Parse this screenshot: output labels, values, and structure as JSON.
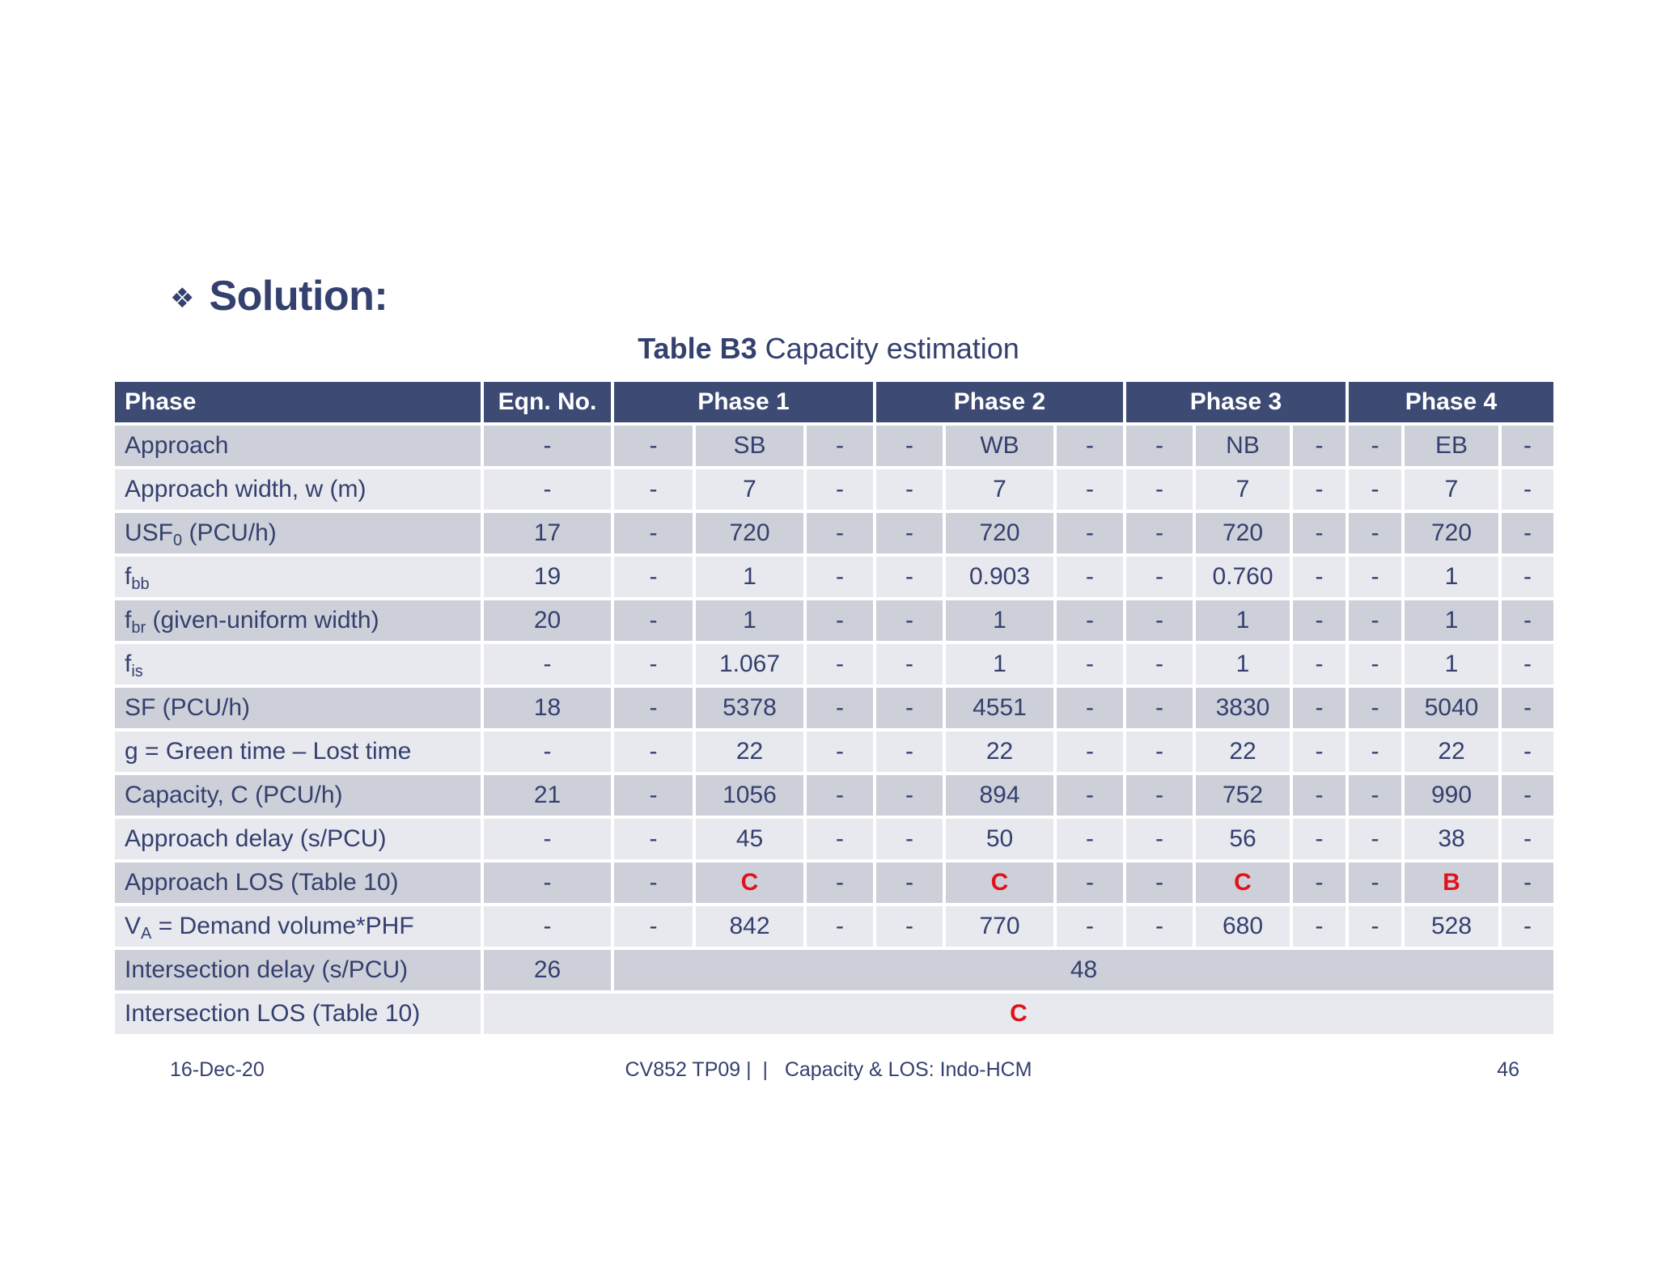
{
  "heading": {
    "bullet": "❖",
    "title": "Solution:"
  },
  "caption": {
    "bold": "Table B3",
    "text": "Capacity estimation"
  },
  "table": {
    "headers": [
      "Phase",
      "Eqn. No.",
      "Phase 1",
      "Phase 2",
      "Phase 3",
      "Phase 4"
    ],
    "rows": [
      {
        "label": "Approach",
        "eqn": "-",
        "cells": [
          "-",
          "SB",
          "-",
          "-",
          "WB",
          "-",
          "-",
          "NB",
          "-",
          "-",
          "EB",
          "-"
        ]
      },
      {
        "label": "Approach width, w (m)",
        "eqn": "-",
        "cells": [
          "-",
          "7",
          "-",
          "-",
          "7",
          "-",
          "-",
          "7",
          "-",
          "-",
          "7",
          "-"
        ]
      },
      {
        "label_main": "USF",
        "label_sub": "0",
        "label_tail": " (PCU/h)",
        "eqn": "17",
        "cells": [
          "-",
          "720",
          "-",
          "-",
          "720",
          "-",
          "-",
          "720",
          "-",
          "-",
          "720",
          "-"
        ]
      },
      {
        "label_main": "f",
        "label_sub": "bb",
        "label_tail": "",
        "eqn": "19",
        "cells": [
          "-",
          "1",
          "-",
          "-",
          "0.903",
          "-",
          "-",
          "0.760",
          "-",
          "-",
          "1",
          "-"
        ]
      },
      {
        "label_main": "f",
        "label_sub": "br",
        "label_tail": " (given-uniform width)",
        "eqn": "20",
        "cells": [
          "-",
          "1",
          "-",
          "-",
          "1",
          "-",
          "-",
          "1",
          "-",
          "-",
          "1",
          "-"
        ]
      },
      {
        "label_main": "f",
        "label_sub": "is",
        "label_tail": "",
        "eqn": "-",
        "cells": [
          "-",
          "1.067",
          "-",
          "-",
          "1",
          "-",
          "-",
          "1",
          "-",
          "-",
          "1",
          "-"
        ]
      },
      {
        "label": "SF (PCU/h)",
        "eqn": "18",
        "cells": [
          "-",
          "5378",
          "-",
          "-",
          "4551",
          "-",
          "-",
          "3830",
          "-",
          "-",
          "5040",
          "-"
        ]
      },
      {
        "label": "g = Green time – Lost time",
        "eqn": "-",
        "cells": [
          "-",
          "22",
          "-",
          "-",
          "22",
          "-",
          "-",
          "22",
          "-",
          "-",
          "22",
          "-"
        ]
      },
      {
        "label": "Capacity, C (PCU/h)",
        "eqn": "21",
        "cells": [
          "-",
          "1056",
          "-",
          "-",
          "894",
          "-",
          "-",
          "752",
          "-",
          "-",
          "990",
          "-"
        ]
      },
      {
        "label": "Approach delay (s/PCU)",
        "eqn": "-",
        "cells": [
          "-",
          "45",
          "-",
          "-",
          "50",
          "-",
          "-",
          "56",
          "-",
          "-",
          "38",
          "-"
        ]
      },
      {
        "label": "Approach LOS (Table 10)",
        "eqn": "-",
        "cells": [
          "-",
          "C",
          "-",
          "-",
          "C",
          "-",
          "-",
          "C",
          "-",
          "-",
          "B",
          "-"
        ]
      },
      {
        "label_main": "V",
        "label_sub": "A",
        "label_tail": " = Demand volume*PHF",
        "eqn": "-",
        "cells": [
          "-",
          "842",
          "-",
          "-",
          "770",
          "-",
          "-",
          "680",
          "-",
          "-",
          "528",
          "-"
        ]
      }
    ],
    "intersection_delay": {
      "label": "Intersection delay (s/PCU)",
      "eqn": "26",
      "value": "48"
    },
    "intersection_los": {
      "label": "Intersection LOS (Table 10)",
      "value": "C"
    }
  },
  "footer": {
    "date": "16-Dec-20",
    "center": "CV852 TP09 |  |   Capacity & LOS: Indo-HCM",
    "page": "46"
  },
  "colors": {
    "header_bg": "#3c4a74",
    "row_dark": "#ced0d9",
    "row_light": "#e8e9ef",
    "text": "#34406e",
    "los_red": "#e0121b"
  }
}
